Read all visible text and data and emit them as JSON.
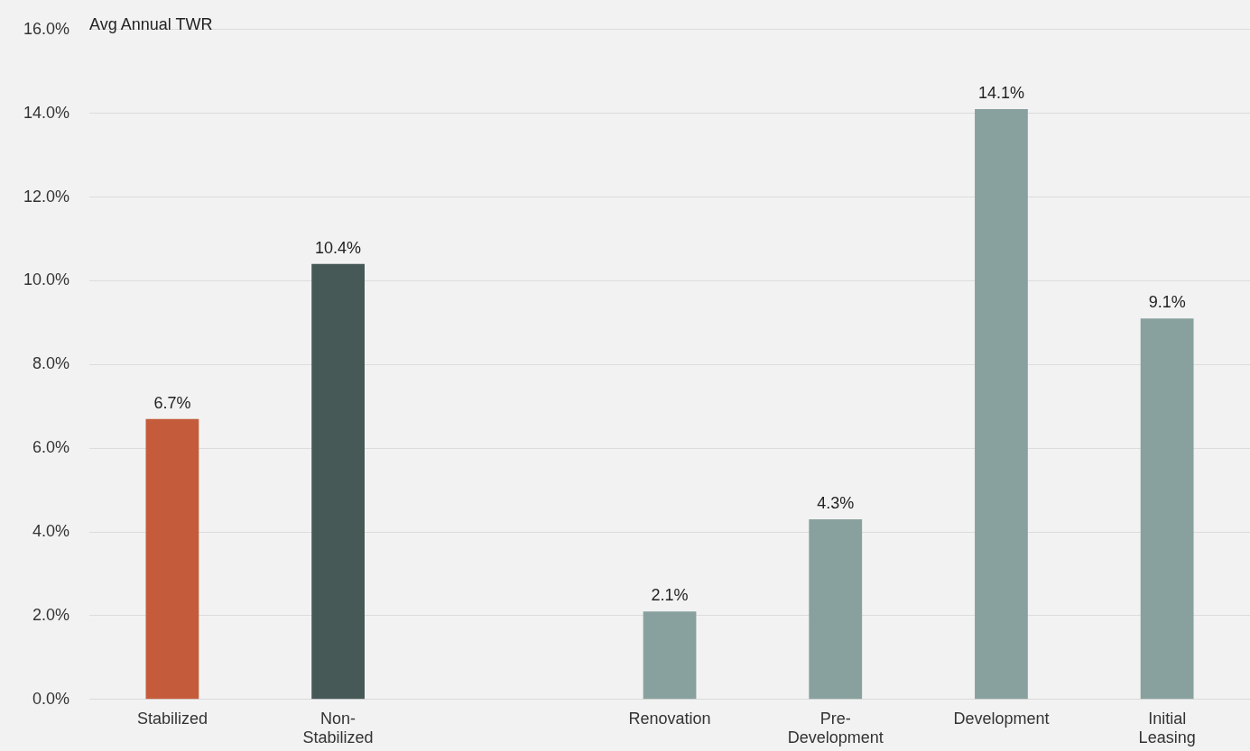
{
  "chart_data": {
    "type": "bar",
    "ylabel": "Avg Annual TWR",
    "categories": [
      "Stabilized",
      "Non-Stabilized",
      null,
      "Renovation",
      "Pre-Development",
      "Development",
      "Initial Leasing"
    ],
    "values": [
      6.7,
      10.4,
      null,
      2.1,
      4.3,
      14.1,
      9.1
    ],
    "colors": [
      "#c45c3b",
      "#465957",
      "#88a19e",
      "#88a19e",
      "#88a19e",
      "#88a19e",
      "#88a19e"
    ],
    "value_labels": [
      "6.7%",
      "10.4%",
      null,
      "2.1%",
      "4.3%",
      "14.1%",
      "9.1%"
    ],
    "ylim": [
      0,
      16
    ],
    "yticks": [
      {
        "value": 0,
        "label": "0.0%"
      },
      {
        "value": 2,
        "label": "2.0%"
      },
      {
        "value": 4,
        "label": "4.0%"
      },
      {
        "value": 6,
        "label": "6.0%"
      },
      {
        "value": 8,
        "label": "8.0%"
      },
      {
        "value": 10,
        "label": "10.0%"
      },
      {
        "value": 12,
        "label": "12.0%"
      },
      {
        "value": 14,
        "label": "14.0%"
      },
      {
        "value": 16,
        "label": "16.0%"
      }
    ],
    "grid": "y",
    "legend": false
  }
}
